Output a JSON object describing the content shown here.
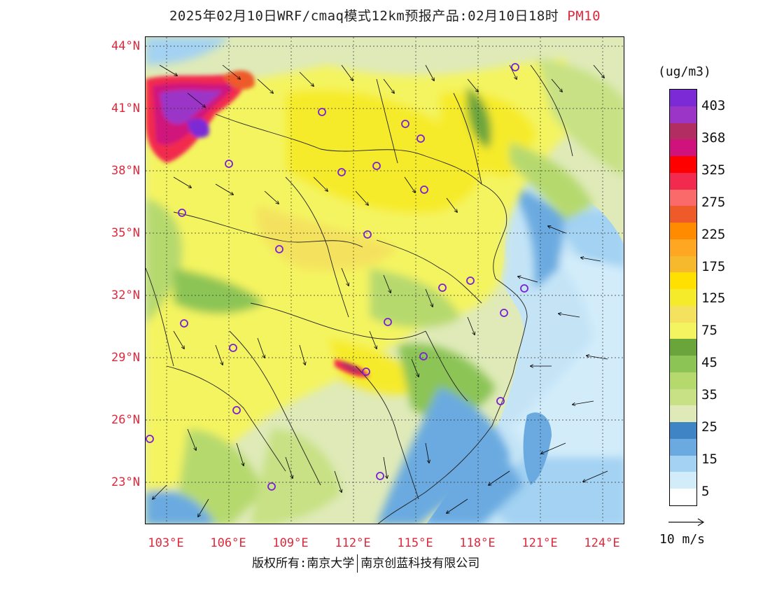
{
  "title": {
    "main": "2025年02月10日WRF/cmaq模式12km预报产品:02月10日18时",
    "pollutant": "PM10"
  },
  "axes": {
    "lat_labels": [
      "44°N",
      "41°N",
      "38°N",
      "35°N",
      "32°N",
      "29°N",
      "26°N",
      "23°N"
    ],
    "lon_labels": [
      "103°E",
      "106°E",
      "109°E",
      "112°E",
      "115°E",
      "118°E",
      "121°E",
      "124°E"
    ]
  },
  "colorbar": {
    "unit": "(ug/m3)",
    "labels": [
      "403",
      "368",
      "325",
      "275",
      "225",
      "175",
      "125",
      "75",
      "45",
      "35",
      "25",
      "15",
      "5"
    ],
    "colors": [
      "#7b2ad6",
      "#9b35c8",
      "#b22e62",
      "#d0127c",
      "#ff0000",
      "#f22a4e",
      "#fa6a6a",
      "#ee5a2a",
      "#ff8c00",
      "#ffa722",
      "#f6b92d",
      "#ffe000",
      "#f6eb2a",
      "#f4e25e",
      "#f4f460",
      "#6aa53c",
      "#8cc456",
      "#b6d96e",
      "#c7e184",
      "#dfeab8",
      "#3f85c6",
      "#6aaae0",
      "#a3d2f2",
      "#d2ecfa",
      "#ffffff"
    ]
  },
  "wind": {
    "scale_label": "10 m/s"
  },
  "footer": {
    "copyright": "版权所有:南京大学",
    "company": "南京创蓝科技有限公司"
  },
  "colors": {
    "accent": "#e0283c",
    "city_marker": "#7a1fd6"
  }
}
